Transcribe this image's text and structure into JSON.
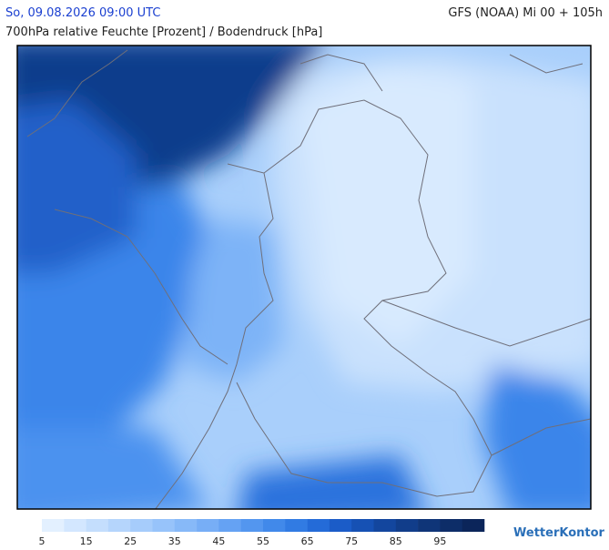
{
  "header": {
    "valid_time": "So, 09.08.2026 09:00 UTC",
    "model_run": "GFS (NOAA) Mi 00 + 105h",
    "subtitle": "700hPa relative Feuchte [Prozent] / Bodendruck [hPa]"
  },
  "legend": {
    "labels": [
      5,
      15,
      25,
      35,
      45,
      55,
      65,
      75,
      85,
      95
    ],
    "colors": [
      "#e3f0ff",
      "#d3e7ff",
      "#c4defd",
      "#b5d5fc",
      "#a6ccfb",
      "#97c3fa",
      "#87b9f8",
      "#77aef6",
      "#65a2f3",
      "#5396ef",
      "#4189ea",
      "#317be3",
      "#246bd8",
      "#1b5cc8",
      "#1651b4",
      "#13469e",
      "#113d8a",
      "#0f3578",
      "#0d2d68",
      "#0b255a"
    ]
  },
  "brand": "WetterKontor"
}
